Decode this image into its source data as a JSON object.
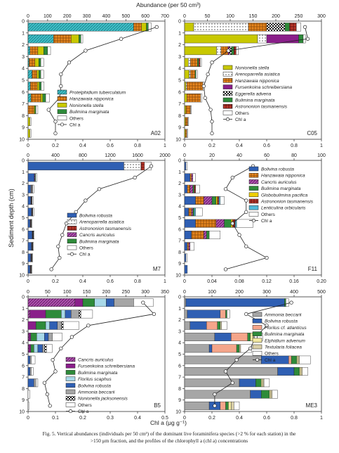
{
  "figure": {
    "top_axis_label": "Abundance (per 50 cm³)",
    "y_axis_label": "Sediment depth (cm)",
    "bottom_axis_label": "Chl a (μg g⁻¹)",
    "caption_line1": "Fig. 5. Vertical abundances (individuals per 50 cm³) of the dominant live foraminifera species (>2 % for each station) in the",
    "caption_line2": ">150 μm fraction, and the profiles of the chlorophyll a (chl a) concentrations"
  },
  "colors": {
    "Protelphidium tuberculatum": "#3fc1c9",
    "Hanzawaia nipponica": "#e8861e",
    "Nonionella stella": "#c8c800",
    "Bulimina marginata": "#2e8b3a",
    "Others": "#ffffff",
    "Arenoparrella asiatica": "#ffffff",
    "Fursenkoina schreibersiana": "#8a1e8a",
    "Eggerella advena": "#ffffff",
    "Astrononion tasmanensis": "#c0392b",
    "Bolivina robusta": "#2f5fb3",
    "Cancris auriculus": "#b050b0",
    "Globobulimina pacifica": "#f0d000",
    "Lenticulina orbicularis": "#4fb8d8",
    "Florilus scaphus": "#a8d8e8",
    "Ammonia beccarii": "#a6a6a6",
    "Nonionella jacksonensis": "#ffffff",
    "Florilus cf. atlanticus": "#f4a58a",
    "Elphidium advenum": "#f2e8a0",
    "Textularia foliacea": "#d9cfa8"
  },
  "chart_data": [
    {
      "type": "bar",
      "station": "A02",
      "abundance_ticks": [
        0,
        100,
        200,
        300,
        400,
        500,
        600,
        700
      ],
      "abundance_range": [
        0,
        700
      ],
      "chl_ticks": [
        "0",
        "0.2",
        "0.4",
        "0.6",
        "0.8",
        "1"
      ],
      "chl_range": [
        0,
        1
      ],
      "depths": [
        "0",
        "1",
        "2",
        "3",
        "4",
        "5",
        "6",
        "7",
        "8",
        "9",
        "10"
      ],
      "legend": [
        "Protelphidium tuberculatum",
        "Hanzawaia nipponica",
        "Nonionella stella",
        "Bulimina marginata",
        "Others",
        "Chl a"
      ],
      "series": [
        {
          "name": "Protelphidium tuberculatum",
          "values": [
            540,
            130,
            10,
            5,
            20,
            12,
            15,
            0,
            0,
            0
          ]
        },
        {
          "name": "Hanzawaia nipponica",
          "values": [
            40,
            90,
            40,
            30,
            25,
            35,
            50,
            30,
            0,
            0
          ]
        },
        {
          "name": "Nonionella stella",
          "values": [
            25,
            40,
            30,
            20,
            10,
            10,
            10,
            5,
            10,
            10
          ]
        },
        {
          "name": "Bulimina marginata",
          "values": [
            10,
            10,
            20,
            10,
            10,
            10,
            15,
            5,
            0,
            0
          ]
        },
        {
          "name": "Others",
          "values": [
            15,
            10,
            15,
            15,
            15,
            15,
            20,
            10,
            5,
            5
          ]
        }
      ],
      "chl": [
        0.94,
        0.68,
        0.42,
        0.3,
        0.24,
        0.24,
        0.23,
        0.15,
        0.2,
        0.2
      ]
    },
    {
      "type": "bar",
      "station": "C05",
      "abundance_ticks": [
        0,
        50,
        100,
        150,
        200,
        250,
        300
      ],
      "abundance_range": [
        0,
        300
      ],
      "chl_ticks": [
        "0",
        "0.2",
        "0.4",
        "0.6",
        "0.8",
        "1"
      ],
      "chl_range": [
        0,
        1
      ],
      "depths": [
        "0",
        "1",
        "2",
        "3",
        "4",
        "5",
        "6",
        "7",
        "8",
        "9",
        "10"
      ],
      "legend": [
        "Nonionella stella",
        "Arenoparrella asiatica",
        "Hanzawaia nipponica",
        "Fursenkoina schreibersiana",
        "Eggerella advena",
        "Bulimina marginata",
        "Astrononion tasmanensis",
        "Others",
        "Chl a"
      ],
      "series": [
        {
          "name": "Nonionella stella",
          "values": [
            20,
            160,
            70,
            8,
            10,
            3,
            5,
            3,
            2,
            2
          ]
        },
        {
          "name": "Arenoparrella asiatica",
          "values": [
            120,
            20,
            10,
            5,
            3,
            2,
            0,
            0,
            0,
            0
          ]
        },
        {
          "name": "Hanzawaia nipponica",
          "values": [
            40,
            0,
            15,
            15,
            10,
            35,
            30,
            10,
            5,
            3
          ]
        },
        {
          "name": "Fursenkoina schreibersiana",
          "values": [
            0,
            70,
            3,
            0,
            0,
            0,
            0,
            0,
            0,
            0
          ]
        },
        {
          "name": "Eggerella advena",
          "values": [
            40,
            0,
            5,
            0,
            0,
            0,
            0,
            0,
            0,
            0
          ]
        },
        {
          "name": "Bulimina marginata",
          "values": [
            10,
            10,
            5,
            3,
            2,
            0,
            0,
            0,
            0,
            0
          ]
        },
        {
          "name": "Astrononion tasmanensis",
          "values": [
            15,
            0,
            5,
            3,
            0,
            0,
            0,
            0,
            0,
            0
          ]
        },
        {
          "name": "Others",
          "values": [
            10,
            5,
            5,
            3,
            3,
            3,
            3,
            2,
            2,
            2
          ]
        }
      ],
      "chl": [
        0.88,
        0.9,
        0.32,
        0.2,
        0.17,
        0.14,
        0.15,
        0.19,
        0.2,
        0.2
      ]
    },
    {
      "type": "bar",
      "station": "M7",
      "abundance_ticks": [
        0,
        400,
        800,
        1200,
        1600,
        2000
      ],
      "abundance_range": [
        0,
        2000
      ],
      "chl_ticks": [
        "0",
        "0.2",
        "0.4",
        "0.6",
        "0.8",
        "1"
      ],
      "chl_range": [
        0,
        1
      ],
      "depths": [
        "0",
        "1",
        "2",
        "3",
        "4",
        "5",
        "6",
        "7",
        "8",
        "9",
        "10"
      ],
      "legend": [
        "Bolivina robusta",
        "Arenoparrella asiatica",
        "Astrononion tasmanensis",
        "Cancris auriculus",
        "Bulimina marginata",
        "Others",
        "Chl a"
      ],
      "series": [
        {
          "name": "Bolivina robusta",
          "values": [
            1400,
            90,
            40,
            40,
            50,
            30,
            60,
            50,
            40,
            30
          ]
        },
        {
          "name": "Arenoparrella asiatica",
          "values": [
            250,
            0,
            10,
            5,
            5,
            5,
            5,
            5,
            5,
            5
          ]
        },
        {
          "name": "Astrononion tasmanensis",
          "values": [
            50,
            0,
            5,
            5,
            5,
            5,
            5,
            5,
            5,
            5
          ]
        },
        {
          "name": "Cancris auriculus",
          "values": [
            0,
            10,
            5,
            5,
            5,
            5,
            5,
            5,
            5,
            5
          ]
        },
        {
          "name": "Bulimina marginata",
          "values": [
            0,
            10,
            5,
            5,
            5,
            5,
            5,
            5,
            5,
            5
          ]
        },
        {
          "name": "Others",
          "values": [
            100,
            20,
            20,
            15,
            15,
            10,
            10,
            10,
            10,
            10
          ]
        }
      ],
      "chl": [
        0.9,
        0.78,
        0.52,
        0.42,
        0.35,
        0.28,
        0.25,
        0.22,
        0.23,
        0.17
      ]
    },
    {
      "type": "bar",
      "station": "F11",
      "abundance_ticks": [
        0,
        20,
        40,
        60,
        80,
        100
      ],
      "abundance_range": [
        0,
        100
      ],
      "chl_ticks": [
        "0",
        "0.04",
        "0.08",
        "0.12",
        "0.16",
        "0.20"
      ],
      "chl_range": [
        0,
        0.2
      ],
      "depths": [
        "0",
        "1",
        "2",
        "3",
        "4",
        "5",
        "6",
        "7",
        "8",
        "9",
        "10"
      ],
      "legend": [
        "Bolivina robusta",
        "Hanzawaia nipponica",
        "Cancris auriculus",
        "Bulimina marginata",
        "Globobulimina pacifica",
        "Astrononion tasmanensis",
        "Lenticulina orbicularis",
        "Others",
        "Chl a"
      ],
      "series": [
        {
          "name": "Bolivina robusta",
          "values": [
            1,
            4,
            2,
            8,
            3,
            8,
            5,
            2,
            1,
            2
          ]
        },
        {
          "name": "Hanzawaia nipponica",
          "values": [
            0,
            1,
            2,
            6,
            2,
            15,
            9,
            1,
            0,
            0
          ]
        },
        {
          "name": "Cancris auriculus",
          "values": [
            0,
            1,
            2,
            6,
            1,
            6,
            2,
            1,
            0,
            0
          ]
        },
        {
          "name": "Bulimina marginata",
          "values": [
            0,
            0,
            1,
            3,
            1,
            5,
            2,
            0,
            0,
            0
          ]
        },
        {
          "name": "Globobulimina pacifica",
          "values": [
            0,
            0,
            0,
            1,
            0,
            1,
            0,
            0,
            0,
            0
          ]
        },
        {
          "name": "Astrononion tasmanensis",
          "values": [
            0,
            0,
            1,
            1,
            0,
            2,
            0,
            0,
            0,
            0
          ]
        },
        {
          "name": "Lenticulina orbicularis",
          "values": [
            0,
            0,
            0,
            1,
            1,
            1,
            0,
            0,
            0,
            0
          ]
        },
        {
          "name": "Others",
          "values": [
            1,
            2,
            3,
            3,
            5,
            12,
            8,
            3,
            1,
            0
          ]
        }
      ],
      "chl": [
        0.1,
        0.07,
        0.06,
        0.09,
        0.09,
        0.07,
        0.08,
        0.09,
        0.12,
        0.06
      ]
    },
    {
      "type": "bar",
      "station": "B5",
      "abundance_ticks": [
        0,
        50,
        100,
        150,
        200,
        250,
        300,
        350
      ],
      "abundance_range": [
        0,
        350
      ],
      "chl_ticks": [
        "0",
        "0.1",
        "0.2",
        "0.3",
        "0.4",
        "0.5"
      ],
      "chl_range": [
        0,
        0.5
      ],
      "depths": [
        "0",
        "1",
        "2",
        "3",
        "4",
        "5",
        "6",
        "7",
        "8",
        "9",
        "10"
      ],
      "legend": [
        "Cancris auriculus",
        "Fursenkoina schreibersiana",
        "Bulimina marginata",
        "Florilus scaphus",
        "Bolivina robusta",
        "Ammonia beccarii",
        "Nonionella jacksonensis",
        "Others",
        "Chl a"
      ],
      "series": [
        {
          "name": "Cancris auriculus",
          "values": [
            120,
            5,
            0,
            2,
            2,
            0,
            0,
            0,
            0,
            0
          ]
        },
        {
          "name": "Fursenkoina schreibersiana",
          "values": [
            20,
            40,
            20,
            5,
            5,
            0,
            0,
            0,
            0,
            0
          ]
        },
        {
          "name": "Bulimina marginata",
          "values": [
            30,
            40,
            25,
            15,
            8,
            0,
            0,
            0,
            0,
            0
          ]
        },
        {
          "name": "Florilus scaphus",
          "values": [
            30,
            10,
            10,
            20,
            10,
            0,
            0,
            0,
            0,
            0
          ]
        },
        {
          "name": "Bolivina robusta",
          "values": [
            20,
            15,
            20,
            10,
            12,
            5,
            5,
            15,
            0,
            0
          ]
        },
        {
          "name": "Ammonia beccarii",
          "values": [
            50,
            20,
            10,
            10,
            5,
            3,
            3,
            5,
            0,
            0
          ]
        },
        {
          "name": "Nonionella jacksonensis",
          "values": [
            0,
            5,
            5,
            0,
            5,
            0,
            0,
            0,
            0,
            0
          ]
        },
        {
          "name": "Others",
          "values": [
            50,
            30,
            40,
            25,
            15,
            10,
            5,
            5,
            5,
            2
          ]
        }
      ],
      "chl": [
        0.42,
        0.46,
        0.22,
        0.16,
        0.12,
        0.09,
        0.1,
        0.06,
        0.07,
        0.08
      ]
    },
    {
      "type": "bar",
      "station": "ME3",
      "abundance_ticks": [
        0,
        100,
        200,
        300,
        400,
        500
      ],
      "abundance_range": [
        0,
        500
      ],
      "chl_ticks": [
        "0",
        "0.2",
        "0.4",
        "0.6",
        "0.8",
        "1"
      ],
      "chl_range": [
        0,
        1
      ],
      "depths": [
        "0",
        "1",
        "2",
        "3",
        "4",
        "5",
        "6",
        "7",
        "8",
        "9",
        "10"
      ],
      "legend": [
        "Ammonia beccarii",
        "Bolivina robusta",
        "Florilus cf. atlanticus",
        "Bulimina marginata",
        "Elphidium advenum",
        "Textularia foliacea",
        "Others",
        "Chl a"
      ],
      "series": [
        {
          "name": "Ammonia beccarii",
          "values": [
            5,
            10,
            20,
            110,
            90,
            280,
            340,
            200,
            240,
            90
          ]
        },
        {
          "name": "Bolivina robusta",
          "values": [
            360,
            120,
            60,
            60,
            10,
            100,
            60,
            60,
            40,
            40
          ]
        },
        {
          "name": "Florilus cf. atlanticus",
          "values": [
            0,
            20,
            40,
            60,
            90,
            10,
            0,
            0,
            0,
            20
          ]
        },
        {
          "name": "Bulimina marginata",
          "values": [
            5,
            5,
            10,
            10,
            10,
            20,
            20,
            20,
            30,
            10
          ]
        },
        {
          "name": "Elphidium advenum",
          "values": [
            0,
            0,
            0,
            10,
            0,
            5,
            5,
            5,
            5,
            10
          ]
        },
        {
          "name": "Textularia foliacea",
          "values": [
            0,
            0,
            5,
            5,
            5,
            5,
            5,
            5,
            5,
            10
          ]
        },
        {
          "name": "Others",
          "values": [
            10,
            10,
            20,
            30,
            40,
            40,
            20,
            20,
            20,
            20
          ]
        }
      ],
      "chl": [
        0.78,
        0.45,
        0.6,
        0.52,
        0.48,
        0.38,
        0.3,
        0.35,
        0.22,
        0.22
      ]
    }
  ]
}
